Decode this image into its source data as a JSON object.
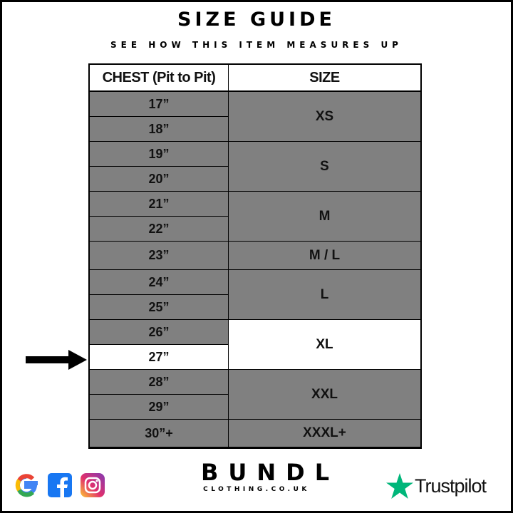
{
  "title": "SIZE GUIDE",
  "subtitle": "SEE HOW THIS ITEM MEASURES UP",
  "table": {
    "headers": [
      "CHEST (Pit to Pit)",
      "SIZE"
    ],
    "chest": [
      "17”",
      "18”",
      "19”",
      "20”",
      "21”",
      "22”",
      "23”",
      "24”",
      "25”",
      "26”",
      "27”",
      "28”",
      "29”",
      "30”+"
    ],
    "sizes": [
      {
        "label": "XS",
        "rows": 2
      },
      {
        "label": "S",
        "rows": 2
      },
      {
        "label": "M",
        "rows": 2
      },
      {
        "label": "M / L",
        "rows": 1
      },
      {
        "label": "L",
        "rows": 2
      },
      {
        "label": "XL",
        "rows": 2,
        "highlighted": true
      },
      {
        "label": "XXL",
        "rows": 2
      },
      {
        "label": "XXXL+",
        "rows": 1
      }
    ],
    "highlighted_chest": "27”",
    "colors": {
      "cell": "#808080",
      "highlight": "#ffffff"
    }
  },
  "footer": {
    "icons": [
      "google-icon",
      "facebook-icon",
      "instagram-icon"
    ],
    "brand_name": "BUNDL",
    "brand_sub": "CLOTHING.CO.UK",
    "trustpilot": "Trustpilot",
    "trustpilot_color": "#00b67a"
  }
}
